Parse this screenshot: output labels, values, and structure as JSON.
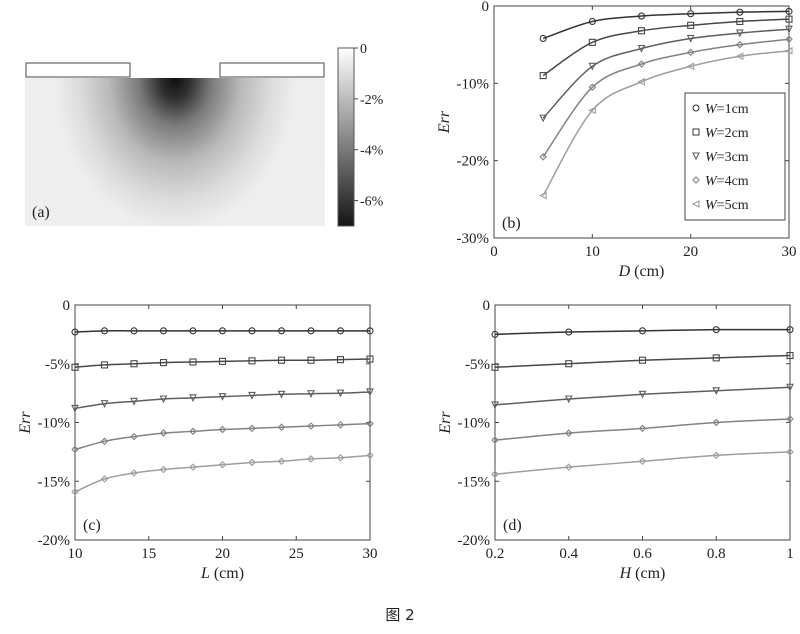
{
  "caption": "图 2",
  "colorbar": {
    "ticks": [
      {
        "value": 0,
        "label": "0"
      },
      {
        "value": -2,
        "label": "-2%"
      },
      {
        "value": -4,
        "label": "-4%"
      },
      {
        "value": -6,
        "label": "-6%"
      }
    ],
    "range": [
      -7,
      0
    ]
  },
  "panel_labels": {
    "a": "(a)",
    "b": "(b)",
    "c": "(c)",
    "d": "(d)"
  },
  "chart_data": [
    {
      "id": "a",
      "type": "heatmap",
      "label": "(a)",
      "colorbar_range": [
        -7,
        0
      ],
      "colorbar_ticks": [
        "0",
        "-2%",
        "-4%",
        "-6%"
      ]
    },
    {
      "id": "b",
      "type": "line",
      "label": "(b)",
      "xlabel_var": "D",
      "xlabel_unit": " (cm)",
      "ylabel": "Err",
      "xlim": [
        0,
        30
      ],
      "ylim": [
        -30,
        0
      ],
      "xticks": [
        {
          "v": 0,
          "t": "0"
        },
        {
          "v": 10,
          "t": "10"
        },
        {
          "v": 20,
          "t": "20"
        },
        {
          "v": 30,
          "t": "30"
        }
      ],
      "yticks": [
        {
          "v": 0,
          "t": "0"
        },
        {
          "v": -10,
          "t": "-10%"
        },
        {
          "v": -20,
          "t": "-20%"
        },
        {
          "v": -30,
          "t": "-30%"
        }
      ],
      "legend_position": "right",
      "x": [
        5,
        10,
        15,
        20,
        25,
        30
      ],
      "series": [
        {
          "var": "W",
          "name": "=1cm",
          "color": "#333333",
          "marker": "circle",
          "values": [
            -4.2,
            -2.0,
            -1.3,
            -1.0,
            -0.8,
            -0.7
          ]
        },
        {
          "var": "W",
          "name": "=2cm",
          "color": "#484848",
          "marker": "square",
          "values": [
            -9.0,
            -4.7,
            -3.2,
            -2.5,
            -2.0,
            -1.7
          ]
        },
        {
          "var": "W",
          "name": "=3cm",
          "color": "#5e5e5e",
          "marker": "triangle",
          "values": [
            -14.5,
            -7.8,
            -5.5,
            -4.2,
            -3.5,
            -3.0
          ]
        },
        {
          "var": "W",
          "name": "=4cm",
          "color": "#828282",
          "marker": "diamond",
          "values": [
            -19.5,
            -10.5,
            -7.5,
            -6.0,
            -5.0,
            -4.3
          ]
        },
        {
          "var": "W",
          "name": "=5cm",
          "color": "#9e9e9e",
          "marker": "triangle-left",
          "values": [
            -24.5,
            -13.5,
            -9.8,
            -7.8,
            -6.5,
            -5.8
          ]
        }
      ]
    },
    {
      "id": "c",
      "type": "line",
      "label": "(c)",
      "xlabel_var": "L",
      "xlabel_unit": " (cm)",
      "ylabel": "Err",
      "xlim": [
        10,
        30
      ],
      "ylim": [
        -20,
        0
      ],
      "xticks": [
        {
          "v": 10,
          "t": "10"
        },
        {
          "v": 15,
          "t": "15"
        },
        {
          "v": 20,
          "t": "20"
        },
        {
          "v": 25,
          "t": "25"
        },
        {
          "v": 30,
          "t": "30"
        }
      ],
      "yticks": [
        {
          "v": 0,
          "t": "0"
        },
        {
          "v": -5,
          "t": "-5%"
        },
        {
          "v": -10,
          "t": "-10%"
        },
        {
          "v": -15,
          "t": "-15%"
        },
        {
          "v": -20,
          "t": "-20%"
        }
      ],
      "x": [
        10,
        12,
        14,
        16,
        18,
        20,
        22,
        24,
        26,
        28,
        30
      ],
      "series": [
        {
          "color": "#333333",
          "marker": "circle",
          "values": [
            -2.3,
            -2.2,
            -2.2,
            -2.2,
            -2.2,
            -2.2,
            -2.2,
            -2.2,
            -2.2,
            -2.2,
            -2.2
          ]
        },
        {
          "color": "#484848",
          "marker": "square",
          "values": [
            -5.3,
            -5.1,
            -5.0,
            -4.9,
            -4.85,
            -4.8,
            -4.75,
            -4.7,
            -4.7,
            -4.65,
            -4.6
          ]
        },
        {
          "color": "#5e5e5e",
          "marker": "triangle",
          "values": [
            -8.8,
            -8.4,
            -8.2,
            -8.0,
            -7.9,
            -7.8,
            -7.7,
            -7.6,
            -7.55,
            -7.5,
            -7.4
          ]
        },
        {
          "color": "#828282",
          "marker": "diamond",
          "values": [
            -12.3,
            -11.6,
            -11.2,
            -10.9,
            -10.75,
            -10.6,
            -10.5,
            -10.4,
            -10.3,
            -10.2,
            -10.1
          ]
        },
        {
          "color": "#9e9e9e",
          "marker": "diamond",
          "values": [
            -15.9,
            -14.8,
            -14.3,
            -14.0,
            -13.8,
            -13.6,
            -13.4,
            -13.3,
            -13.1,
            -13.0,
            -12.8
          ]
        }
      ]
    },
    {
      "id": "d",
      "type": "line",
      "label": "(d)",
      "xlabel_var": "H",
      "xlabel_unit": " (cm)",
      "ylabel": "Err",
      "xlim": [
        0.2,
        1
      ],
      "ylim": [
        -20,
        0
      ],
      "xticks": [
        {
          "v": 0.2,
          "t": "0.2"
        },
        {
          "v": 0.4,
          "t": "0.4"
        },
        {
          "v": 0.6,
          "t": "0.6"
        },
        {
          "v": 0.8,
          "t": "0.8"
        },
        {
          "v": 1,
          "t": "1"
        }
      ],
      "yticks": [
        {
          "v": 0,
          "t": "0"
        },
        {
          "v": -5,
          "t": "-5%"
        },
        {
          "v": -10,
          "t": "-10%"
        },
        {
          "v": -15,
          "t": "-15%"
        },
        {
          "v": -20,
          "t": "-20%"
        }
      ],
      "x": [
        0.2,
        0.4,
        0.6,
        0.8,
        1.0
      ],
      "series": [
        {
          "color": "#333333",
          "marker": "circle",
          "values": [
            -2.5,
            -2.3,
            -2.2,
            -2.1,
            -2.1
          ]
        },
        {
          "color": "#484848",
          "marker": "square",
          "values": [
            -5.3,
            -5.0,
            -4.7,
            -4.5,
            -4.3
          ]
        },
        {
          "color": "#5e5e5e",
          "marker": "triangle",
          "values": [
            -8.5,
            -8.0,
            -7.6,
            -7.3,
            -7.0
          ]
        },
        {
          "color": "#828282",
          "marker": "diamond",
          "values": [
            -11.5,
            -10.9,
            -10.5,
            -10.0,
            -9.7
          ]
        },
        {
          "color": "#9e9e9e",
          "marker": "diamond",
          "values": [
            -14.4,
            -13.8,
            -13.3,
            -12.8,
            -12.5
          ]
        }
      ]
    }
  ]
}
